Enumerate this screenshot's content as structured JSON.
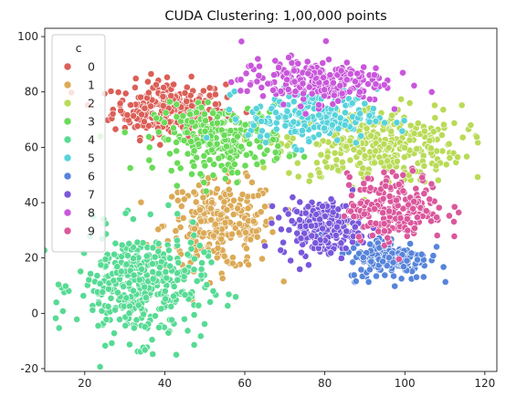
{
  "chart_data": {
    "type": "scatter",
    "title": "CUDA Clustering: 1,00,000 points",
    "xlabel": "",
    "ylabel": "",
    "xlim": [
      10,
      123
    ],
    "ylim": [
      -21,
      103
    ],
    "x_ticks": [
      20,
      40,
      60,
      80,
      100,
      120
    ],
    "y_ticks": [
      -20,
      0,
      20,
      40,
      60,
      80,
      100
    ],
    "grid": false,
    "legend": {
      "title": "c",
      "placement": "top-left",
      "entries": [
        "0",
        "1",
        "2",
        "3",
        "4",
        "5",
        "6",
        "7",
        "8",
        "9"
      ]
    },
    "point_style": {
      "edge_color": "#ffffff"
    },
    "series": [
      {
        "name": "0",
        "color": "#db5f57",
        "center": [
          41,
          74
        ],
        "spread": [
          7,
          5
        ],
        "n_drawn": 260
      },
      {
        "name": "1",
        "color": "#dbaa57",
        "center": [
          54,
          32
        ],
        "spread": [
          7,
          8
        ],
        "n_drawn": 260
      },
      {
        "name": "2",
        "color": "#b9db57",
        "center": [
          92,
          61
        ],
        "spread": [
          11,
          7
        ],
        "n_drawn": 340
      },
      {
        "name": "3",
        "color": "#69db57",
        "center": [
          54,
          63
        ],
        "spread": [
          8,
          6
        ],
        "n_drawn": 260
      },
      {
        "name": "4",
        "color": "#57db94",
        "center": [
          34,
          10
        ],
        "spread": [
          8,
          10
        ],
        "n_drawn": 380
      },
      {
        "name": "5",
        "color": "#57d3db",
        "center": [
          77,
          71
        ],
        "spread": [
          8,
          5
        ],
        "n_drawn": 200
      },
      {
        "name": "6",
        "color": "#5784db",
        "center": [
          96,
          20
        ],
        "spread": [
          5,
          4
        ],
        "n_drawn": 180
      },
      {
        "name": "7",
        "color": "#7957db",
        "center": [
          79,
          31
        ],
        "spread": [
          5,
          5
        ],
        "n_drawn": 200
      },
      {
        "name": "8",
        "color": "#c957db",
        "center": [
          77,
          84
        ],
        "spread": [
          9,
          4
        ],
        "n_drawn": 220
      },
      {
        "name": "9",
        "color": "#db579c",
        "center": [
          98,
          38
        ],
        "spread": [
          6,
          6
        ],
        "n_drawn": 220
      }
    ]
  }
}
